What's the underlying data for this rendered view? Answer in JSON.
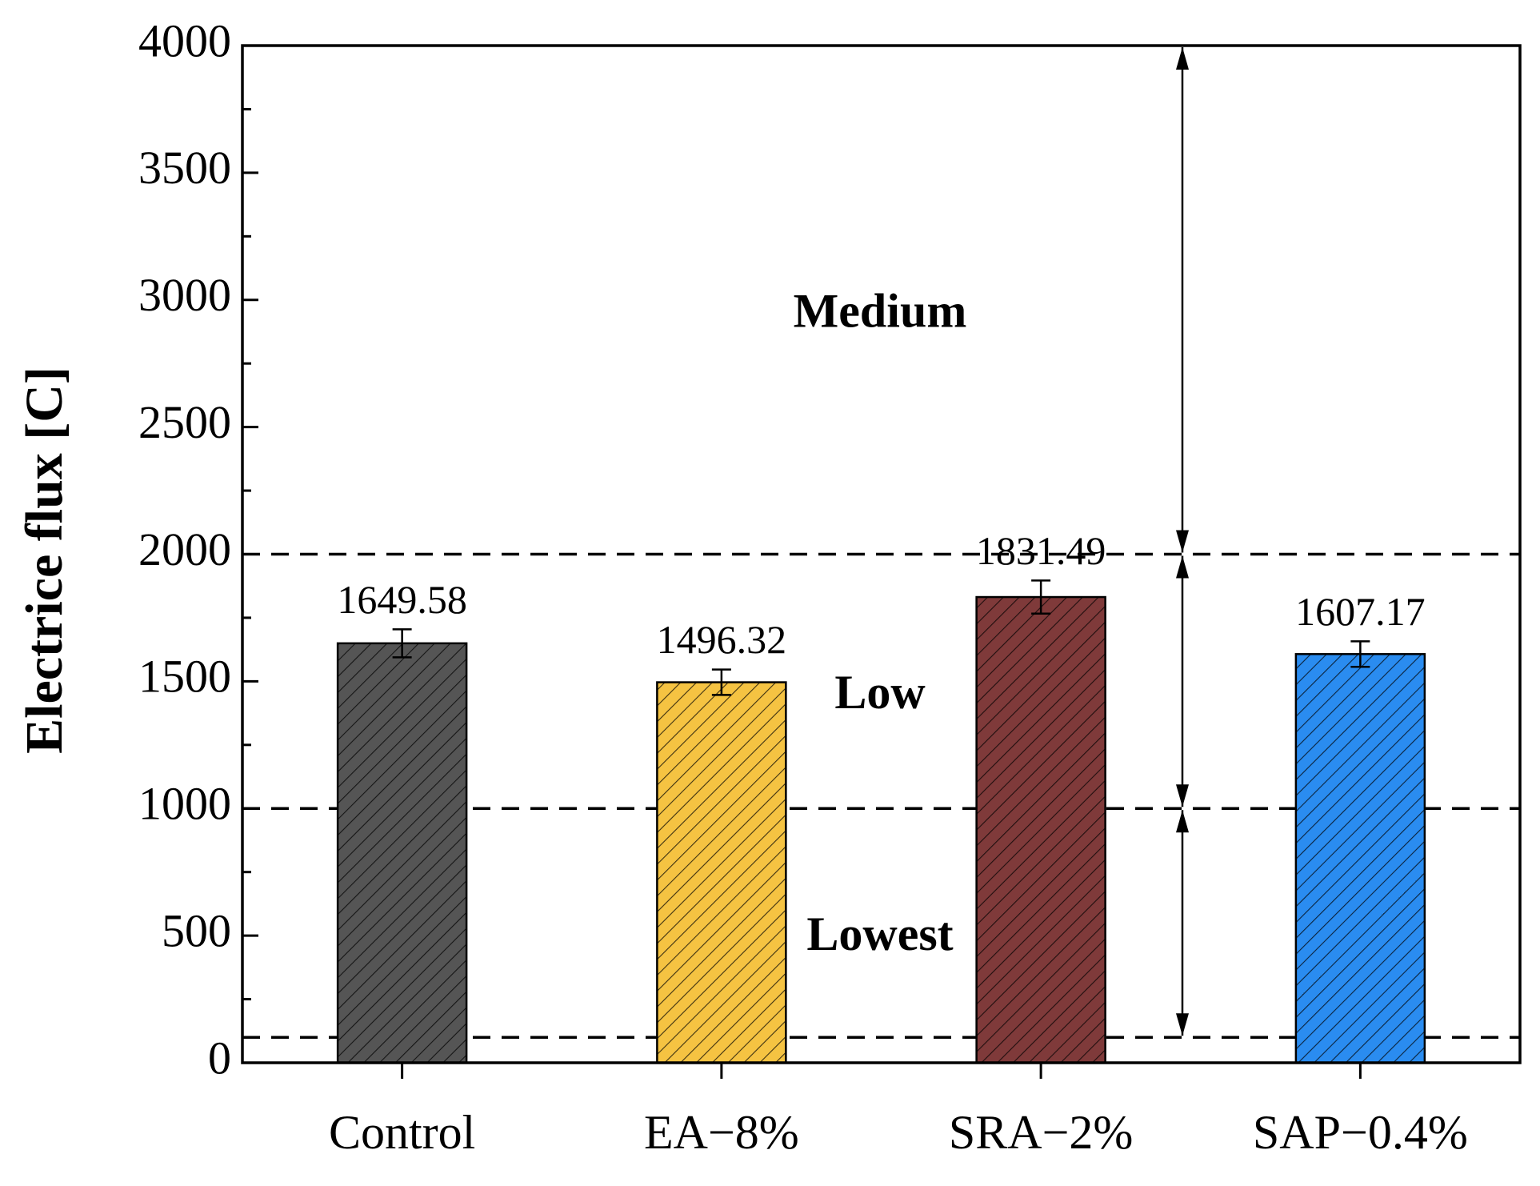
{
  "chart_data": {
    "type": "bar",
    "y_label": "Electrice flux [C]",
    "categories": [
      "Control",
      "EA−8%",
      "SRA−2%",
      "SAP−0.4%"
    ],
    "values": [
      1649.58,
      1496.32,
      1831.49,
      1607.17
    ],
    "errors": [
      55,
      50,
      65,
      50
    ],
    "colors": [
      "#555555",
      "#f5c342",
      "#7f3a3a",
      "#2a8cf0"
    ],
    "hatch": true,
    "ylim": [
      0,
      4000
    ],
    "yticks": [
      0,
      500,
      1000,
      1500,
      2000,
      2500,
      3000,
      3500,
      4000
    ],
    "bands": [
      {
        "label": "Medium",
        "from": 2000,
        "to": 4000
      },
      {
        "label": "Low",
        "from": 1000,
        "to": 2000
      },
      {
        "label": "Lowest",
        "from": 100,
        "to": 1000
      }
    ]
  }
}
